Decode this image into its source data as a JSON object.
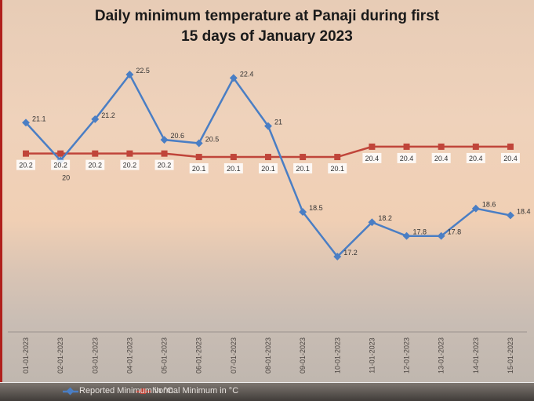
{
  "chart_data": {
    "type": "line",
    "title": "Daily minimum temperature at Panaji during first 15 days of January 2023",
    "title_lines": [
      "Daily minimum temperature at Panaji during first",
      "15 days of January 2023"
    ],
    "categories": [
      "01-01-2023",
      "02-01-2023",
      "03-01-2023",
      "04-01-2023",
      "05-01-2023",
      "06-01-2023",
      "07-01-2023",
      "08-01-2023",
      "09-01-2023",
      "10-01-2023",
      "11-01-2023",
      "12-01-2023",
      "13-01-2023",
      "14-01-2023",
      "15-01-2023"
    ],
    "series": [
      {
        "name": "Reported Minimum in °C",
        "color": "#4a7ec4",
        "marker": "diamond",
        "values": [
          21.1,
          20,
          21.2,
          22.5,
          20.6,
          20.5,
          22.4,
          21,
          18.5,
          17.2,
          18.2,
          17.8,
          17.8,
          18.6,
          18.4
        ]
      },
      {
        "name": "Normal Minimum in °C",
        "color": "#c0453a",
        "marker": "square",
        "values": [
          20.2,
          20.2,
          20.2,
          20.2,
          20.2,
          20.1,
          20.1,
          20.1,
          20.1,
          20.1,
          20.4,
          20.4,
          20.4,
          20.4,
          20.4
        ]
      }
    ],
    "ylim": [
      15.5,
      23.5
    ],
    "grid": false,
    "legend": "bottom"
  }
}
